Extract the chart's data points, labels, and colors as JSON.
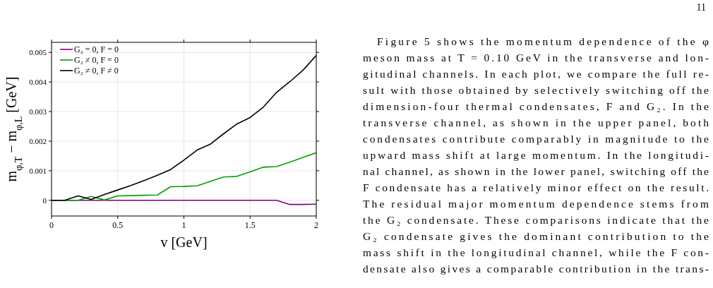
{
  "chart_data": {
    "type": "line",
    "xlabel": "v [GeV]",
    "ylabel": "m$_{φ,T}$ − m$_{φ,L}$ [GeV]",
    "x": [
      0,
      0.1,
      0.2,
      0.3,
      0.4,
      0.5,
      0.6,
      0.7,
      0.8,
      0.9,
      1.0,
      1.1,
      1.2,
      1.3,
      1.4,
      1.5,
      1.6,
      1.7,
      1.8,
      1.9,
      2.0
    ],
    "series": [
      {
        "name": "G₂ = 0,  F = 0",
        "color": "#800080",
        "values": [
          0,
          0,
          0,
          0,
          0,
          0,
          0,
          0,
          0,
          0,
          0,
          0,
          0,
          0,
          0,
          0,
          0,
          0,
          -0.00014,
          -0.00014,
          -0.00013
        ]
      },
      {
        "name": "G₂ ≠ 0,  F = 0",
        "color": "#00a000",
        "values": [
          0,
          0,
          0,
          0.00013,
          1e-05,
          0.00015,
          0.00016,
          0.00017,
          0.00018,
          0.00046,
          0.00047,
          0.00049,
          0.00064,
          0.00079,
          0.00081,
          0.00096,
          0.00112,
          0.00114,
          0.00129,
          0.00145,
          0.00161
        ]
      },
      {
        "name": "G₂ ≠ 0,  F ≠ 0",
        "color": "#000000",
        "values": [
          0,
          0,
          0.00015,
          3e-05,
          0.0002,
          0.00035,
          0.0005,
          0.00067,
          0.00085,
          0.00104,
          0.00136,
          0.0017,
          0.0019,
          0.00225,
          0.00258,
          0.0028,
          0.00315,
          0.00365,
          0.00401,
          0.0044,
          0.0049
        ]
      }
    ],
    "xlim": [
      0,
      2
    ],
    "xticks": [
      0,
      0.5,
      1,
      1.5,
      2
    ],
    "ylim": [
      -0.00053,
      0.00534
    ],
    "yticks": [
      0,
      0.001,
      0.002,
      0.003,
      0.004,
      0.005
    ],
    "grid": true,
    "legend": "top left",
    "line_style": "solid",
    "annotations": [
      "11",
      "Figure 5 shows the momentum dependence of the φ",
      "meson mass at T = 0.10 GeV in the transverse and lon-",
      "gitudinal channels. In each plot, we compare the full re-",
      "sult with those obtained by selectively switching off the",
      "dimension-four thermal condensates, F and G₂. In the",
      "transverse channel, as shown in the upper panel, both",
      "condensates contribute comparably in magnitude to the",
      "upward mass shift at large momentum. In the longitudi-",
      "nal channel, as shown in the lower panel, switching off the",
      "F condensate has a relatively minor effect on the result.",
      "The residual major momentum dependence stems from",
      "the G₂ condensate. These comparisons indicate that the",
      "G₂ condensate gives the dominant contribution to the",
      "mass shift in the longitudinal channel, while the F con-",
      "densate also gives a comparable contribution in the trans-"
    ]
  }
}
